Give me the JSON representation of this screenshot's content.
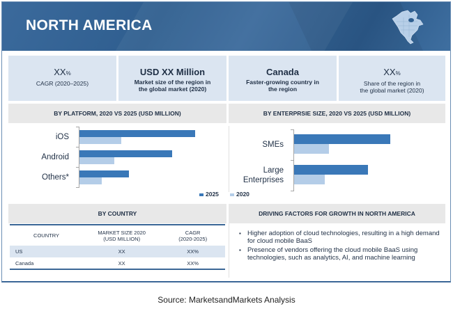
{
  "header": {
    "title": "NORTH AMERICA",
    "map_icon": "north-america-map-icon",
    "colors": {
      "banner": "#2f5e8f",
      "kpi_bg": "#dbe5f1",
      "bar_2025": "#3a78b8",
      "bar_2020": "#b4cde8"
    }
  },
  "kpis": [
    {
      "value": "XX",
      "unit": "%",
      "label": "CAGR (2020–2025)"
    },
    {
      "value": "USD XX Million",
      "unit": "",
      "label_line1": "Market size of the region in",
      "label_line2": "the global market (2020)"
    },
    {
      "value": "Canada",
      "unit": "",
      "label_line1": "Faster-growing country in",
      "label_line2": "the region"
    },
    {
      "value": "XX",
      "unit": "%",
      "label_line1": "Share of the region in",
      "label_line2": "the global market (2020)"
    }
  ],
  "chart_data": [
    {
      "type": "bar",
      "orientation": "horizontal",
      "title": "BY PLATFORM, 2020 VS 2025 (USD MILLION)",
      "categories": [
        "iOS",
        "Android",
        "Others*"
      ],
      "series": [
        {
          "name": "2025",
          "values": [
            100,
            80,
            43
          ]
        },
        {
          "name": "2020",
          "values": [
            36,
            30,
            19
          ]
        }
      ],
      "xlabel": "",
      "ylabel": "",
      "note": "relative bar lengths, no axis values shown",
      "legend": "bottom-right",
      "grid": false
    },
    {
      "type": "bar",
      "orientation": "horizontal",
      "title": "BY ENTERPRSIE SIZE, 2020 VS 2025 (USD MILLION)",
      "categories": [
        "SMEs",
        "Large Enterprises"
      ],
      "series": [
        {
          "name": "2025",
          "values": [
            100,
            77
          ]
        },
        {
          "name": "2020",
          "values": [
            36,
            32
          ]
        }
      ],
      "xlabel": "",
      "ylabel": "",
      "note": "relative bar lengths, no axis values shown",
      "legend": "bottom-left",
      "grid": false
    }
  ],
  "legend": {
    "s2025": "2025",
    "s2020": "2020"
  },
  "country": {
    "title": "BY COUNTRY",
    "headers": [
      "COUNTRY",
      "MARKET SIZE 2020",
      "(USD MILLION)",
      "CAGR",
      "(2020-2025)"
    ],
    "rows": [
      {
        "country": "US",
        "size": "XX",
        "cagr": "XX%"
      },
      {
        "country": "Canada",
        "size": "XX",
        "cagr": "XX%"
      }
    ]
  },
  "drivers": {
    "title": "DRIVING FACTORS FOR GROWTH IN NORTH AMERICA",
    "items": [
      "Higher adoption of cloud technologies, resulting in a high demand for cloud mobile BaaS",
      "Presence of vendors offering the cloud mobile BaaS using technologies, such as analytics, AI, and machine learning"
    ]
  },
  "source": "Source: MarketsandMarkets Analysis"
}
